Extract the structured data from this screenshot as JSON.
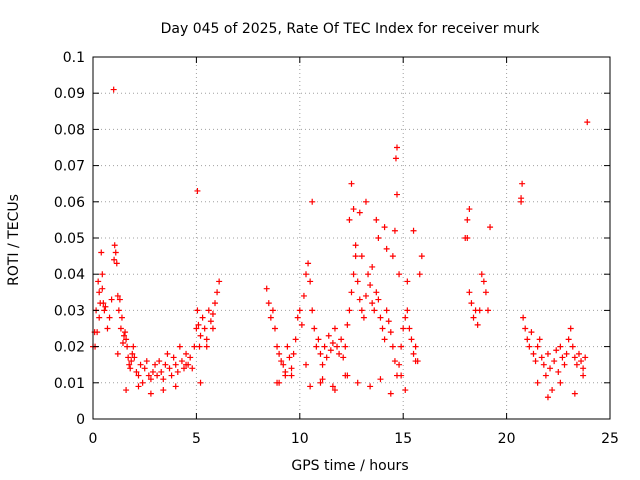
{
  "chart_data": {
    "type": "scatter",
    "title": "Day 045 of 2025, Rate Of TEC Index for receiver murk",
    "xlabel": "GPS time / hours",
    "ylabel": "ROTI / TECUs",
    "xlim": [
      0,
      25
    ],
    "ylim": [
      0,
      0.1
    ],
    "xticks": [
      "0",
      "5",
      "10",
      "15",
      "20",
      "25"
    ],
    "yticks": [
      "0",
      "0.01",
      "0.02",
      "0.03",
      "0.04",
      "0.05",
      "0.06",
      "0.07",
      "0.08",
      "0.09",
      "0.1"
    ],
    "grid": true,
    "marker": "plus",
    "color": "#ff0000",
    "series": [
      {
        "x": [
          0.0,
          0.08,
          0.15,
          0.2,
          0.25,
          0.3,
          0.35,
          0.4,
          0.45,
          0.5,
          0.55,
          0.6,
          0.7,
          0.8,
          0.9,
          1.0,
          1.02,
          1.05,
          1.1,
          1.15,
          1.2,
          1.25,
          1.3,
          1.35,
          1.4,
          1.45,
          1.5,
          1.55,
          1.6,
          1.65,
          1.7,
          1.75,
          1.8,
          1.85,
          1.9,
          1.95,
          2.0,
          2.1,
          2.2,
          2.3,
          2.4,
          2.5,
          2.6,
          2.7,
          2.8,
          2.9,
          3.0,
          3.1,
          3.2,
          3.3,
          3.4,
          3.5,
          3.6,
          3.7,
          3.8,
          3.9,
          4.0,
          4.1,
          4.2,
          4.3,
          4.4,
          4.5,
          4.6,
          4.7,
          4.8,
          4.9,
          5.0,
          5.05,
          5.1,
          5.15,
          5.2,
          5.3,
          5.4,
          5.5,
          5.6,
          5.7,
          5.8,
          5.9,
          6.0,
          6.1,
          8.4,
          8.5,
          8.6,
          8.7,
          8.8,
          8.9,
          9.0,
          9.1,
          9.2,
          9.3,
          9.4,
          9.5,
          9.6,
          9.7,
          9.8,
          9.9,
          10.0,
          10.1,
          10.2,
          10.3,
          10.4,
          10.5,
          10.6,
          10.7,
          10.8,
          10.9,
          11.0,
          11.1,
          11.2,
          11.3,
          11.4,
          11.5,
          11.6,
          11.7,
          11.8,
          11.9,
          12.0,
          12.1,
          12.2,
          12.3,
          12.4,
          12.5,
          12.6,
          12.7,
          12.8,
          12.9,
          13.0,
          13.1,
          13.2,
          13.3,
          13.4,
          13.5,
          13.6,
          13.7,
          13.8,
          13.9,
          14.0,
          14.1,
          14.2,
          14.3,
          14.4,
          14.5,
          14.6,
          14.7,
          14.8,
          14.9,
          15.0,
          15.1,
          15.2,
          15.3,
          15.4,
          15.5,
          15.6,
          15.7,
          15.8,
          15.9,
          18.0,
          18.1,
          18.2,
          18.3,
          18.4,
          18.5,
          18.6,
          18.7,
          18.8,
          18.9,
          19.0,
          19.1,
          19.2,
          20.7,
          20.8,
          20.9,
          21.0,
          21.1,
          21.2,
          21.3,
          21.4,
          21.5,
          21.6,
          21.7,
          21.8,
          21.9,
          22.0,
          22.1,
          22.2,
          22.3,
          22.4,
          22.5,
          22.6,
          22.7,
          22.8,
          22.9,
          23.0,
          23.1,
          23.2,
          23.3,
          23.4,
          23.5,
          23.6,
          23.7,
          23.8,
          23.9,
          14.7,
          14.65,
          14.7,
          12.5,
          12.6,
          18.1,
          18.2,
          20.7,
          20.75,
          5.05,
          10.6,
          12.9,
          13.2,
          13.7,
          14.1,
          14.6,
          15.1,
          9.0,
          9.3,
          10.5,
          11.1,
          11.7,
          12.3,
          12.8,
          13.4,
          13.9,
          14.4,
          14.9,
          15.5,
          12.4,
          12.7,
          13.0,
          13.5,
          13.8,
          14.2,
          14.5,
          14.8,
          15.2,
          15.6,
          0.1,
          0.3,
          0.45,
          1.2,
          1.6,
          2.2,
          2.8,
          3.4,
          4.0,
          4.5,
          5.2,
          5.5,
          5.8,
          8.9,
          9.6,
          10.3,
          11.0,
          11.6,
          12.2,
          21.5,
          22.0,
          22.6,
          23.3,
          23.7
        ],
        "y": [
          0.02,
          0.024,
          0.03,
          0.024,
          0.038,
          0.035,
          0.032,
          0.046,
          0.04,
          0.032,
          0.03,
          0.031,
          0.025,
          0.028,
          0.033,
          0.091,
          0.044,
          0.048,
          0.046,
          0.043,
          0.034,
          0.03,
          0.033,
          0.025,
          0.028,
          0.021,
          0.023,
          0.024,
          0.022,
          0.02,
          0.017,
          0.015,
          0.014,
          0.016,
          0.018,
          0.02,
          0.017,
          0.013,
          0.012,
          0.015,
          0.01,
          0.014,
          0.016,
          0.012,
          0.011,
          0.013,
          0.015,
          0.012,
          0.016,
          0.013,
          0.011,
          0.015,
          0.018,
          0.014,
          0.012,
          0.017,
          0.015,
          0.013,
          0.02,
          0.016,
          0.014,
          0.018,
          0.015,
          0.017,
          0.014,
          0.02,
          0.025,
          0.03,
          0.026,
          0.02,
          0.023,
          0.028,
          0.025,
          0.022,
          0.03,
          0.027,
          0.029,
          0.032,
          0.035,
          0.038,
          0.036,
          0.032,
          0.028,
          0.03,
          0.025,
          0.02,
          0.018,
          0.016,
          0.015,
          0.013,
          0.02,
          0.017,
          0.014,
          0.018,
          0.022,
          0.028,
          0.03,
          0.026,
          0.034,
          0.04,
          0.043,
          0.038,
          0.03,
          0.025,
          0.02,
          0.022,
          0.018,
          0.015,
          0.02,
          0.017,
          0.023,
          0.019,
          0.021,
          0.025,
          0.02,
          0.018,
          0.022,
          0.017,
          0.02,
          0.026,
          0.03,
          0.035,
          0.04,
          0.045,
          0.038,
          0.033,
          0.03,
          0.028,
          0.034,
          0.04,
          0.037,
          0.032,
          0.03,
          0.035,
          0.033,
          0.028,
          0.025,
          0.022,
          0.03,
          0.027,
          0.024,
          0.02,
          0.016,
          0.012,
          0.015,
          0.02,
          0.025,
          0.028,
          0.03,
          0.025,
          0.022,
          0.018,
          0.02,
          0.016,
          0.04,
          0.045,
          0.05,
          0.055,
          0.035,
          0.032,
          0.028,
          0.03,
          0.026,
          0.03,
          0.04,
          0.038,
          0.035,
          0.03,
          0.053,
          0.06,
          0.028,
          0.025,
          0.022,
          0.02,
          0.024,
          0.018,
          0.016,
          0.02,
          0.022,
          0.017,
          0.015,
          0.012,
          0.018,
          0.014,
          0.008,
          0.016,
          0.019,
          0.013,
          0.02,
          0.017,
          0.015,
          0.018,
          0.022,
          0.025,
          0.02,
          0.017,
          0.015,
          0.018,
          0.016,
          0.014,
          0.017,
          0.082,
          0.075,
          0.072,
          0.062,
          0.065,
          0.058,
          0.05,
          0.058,
          0.061,
          0.065,
          0.063,
          0.06,
          0.057,
          0.06,
          0.055,
          0.053,
          0.052,
          0.008,
          0.01,
          0.012,
          0.009,
          0.011,
          0.008,
          0.012,
          0.01,
          0.009,
          0.011,
          0.007,
          0.012,
          0.052,
          0.055,
          0.048,
          0.045,
          0.042,
          0.05,
          0.047,
          0.045,
          0.04,
          0.038,
          0.016,
          0.02,
          0.028,
          0.036,
          0.018,
          0.008,
          0.009,
          0.007,
          0.008,
          0.009,
          0.015,
          0.01,
          0.02,
          0.025,
          0.01,
          0.012,
          0.015,
          0.01,
          0.009,
          0.012,
          0.01,
          0.006,
          0.01,
          0.007,
          0.012
        ]
      }
    ]
  }
}
